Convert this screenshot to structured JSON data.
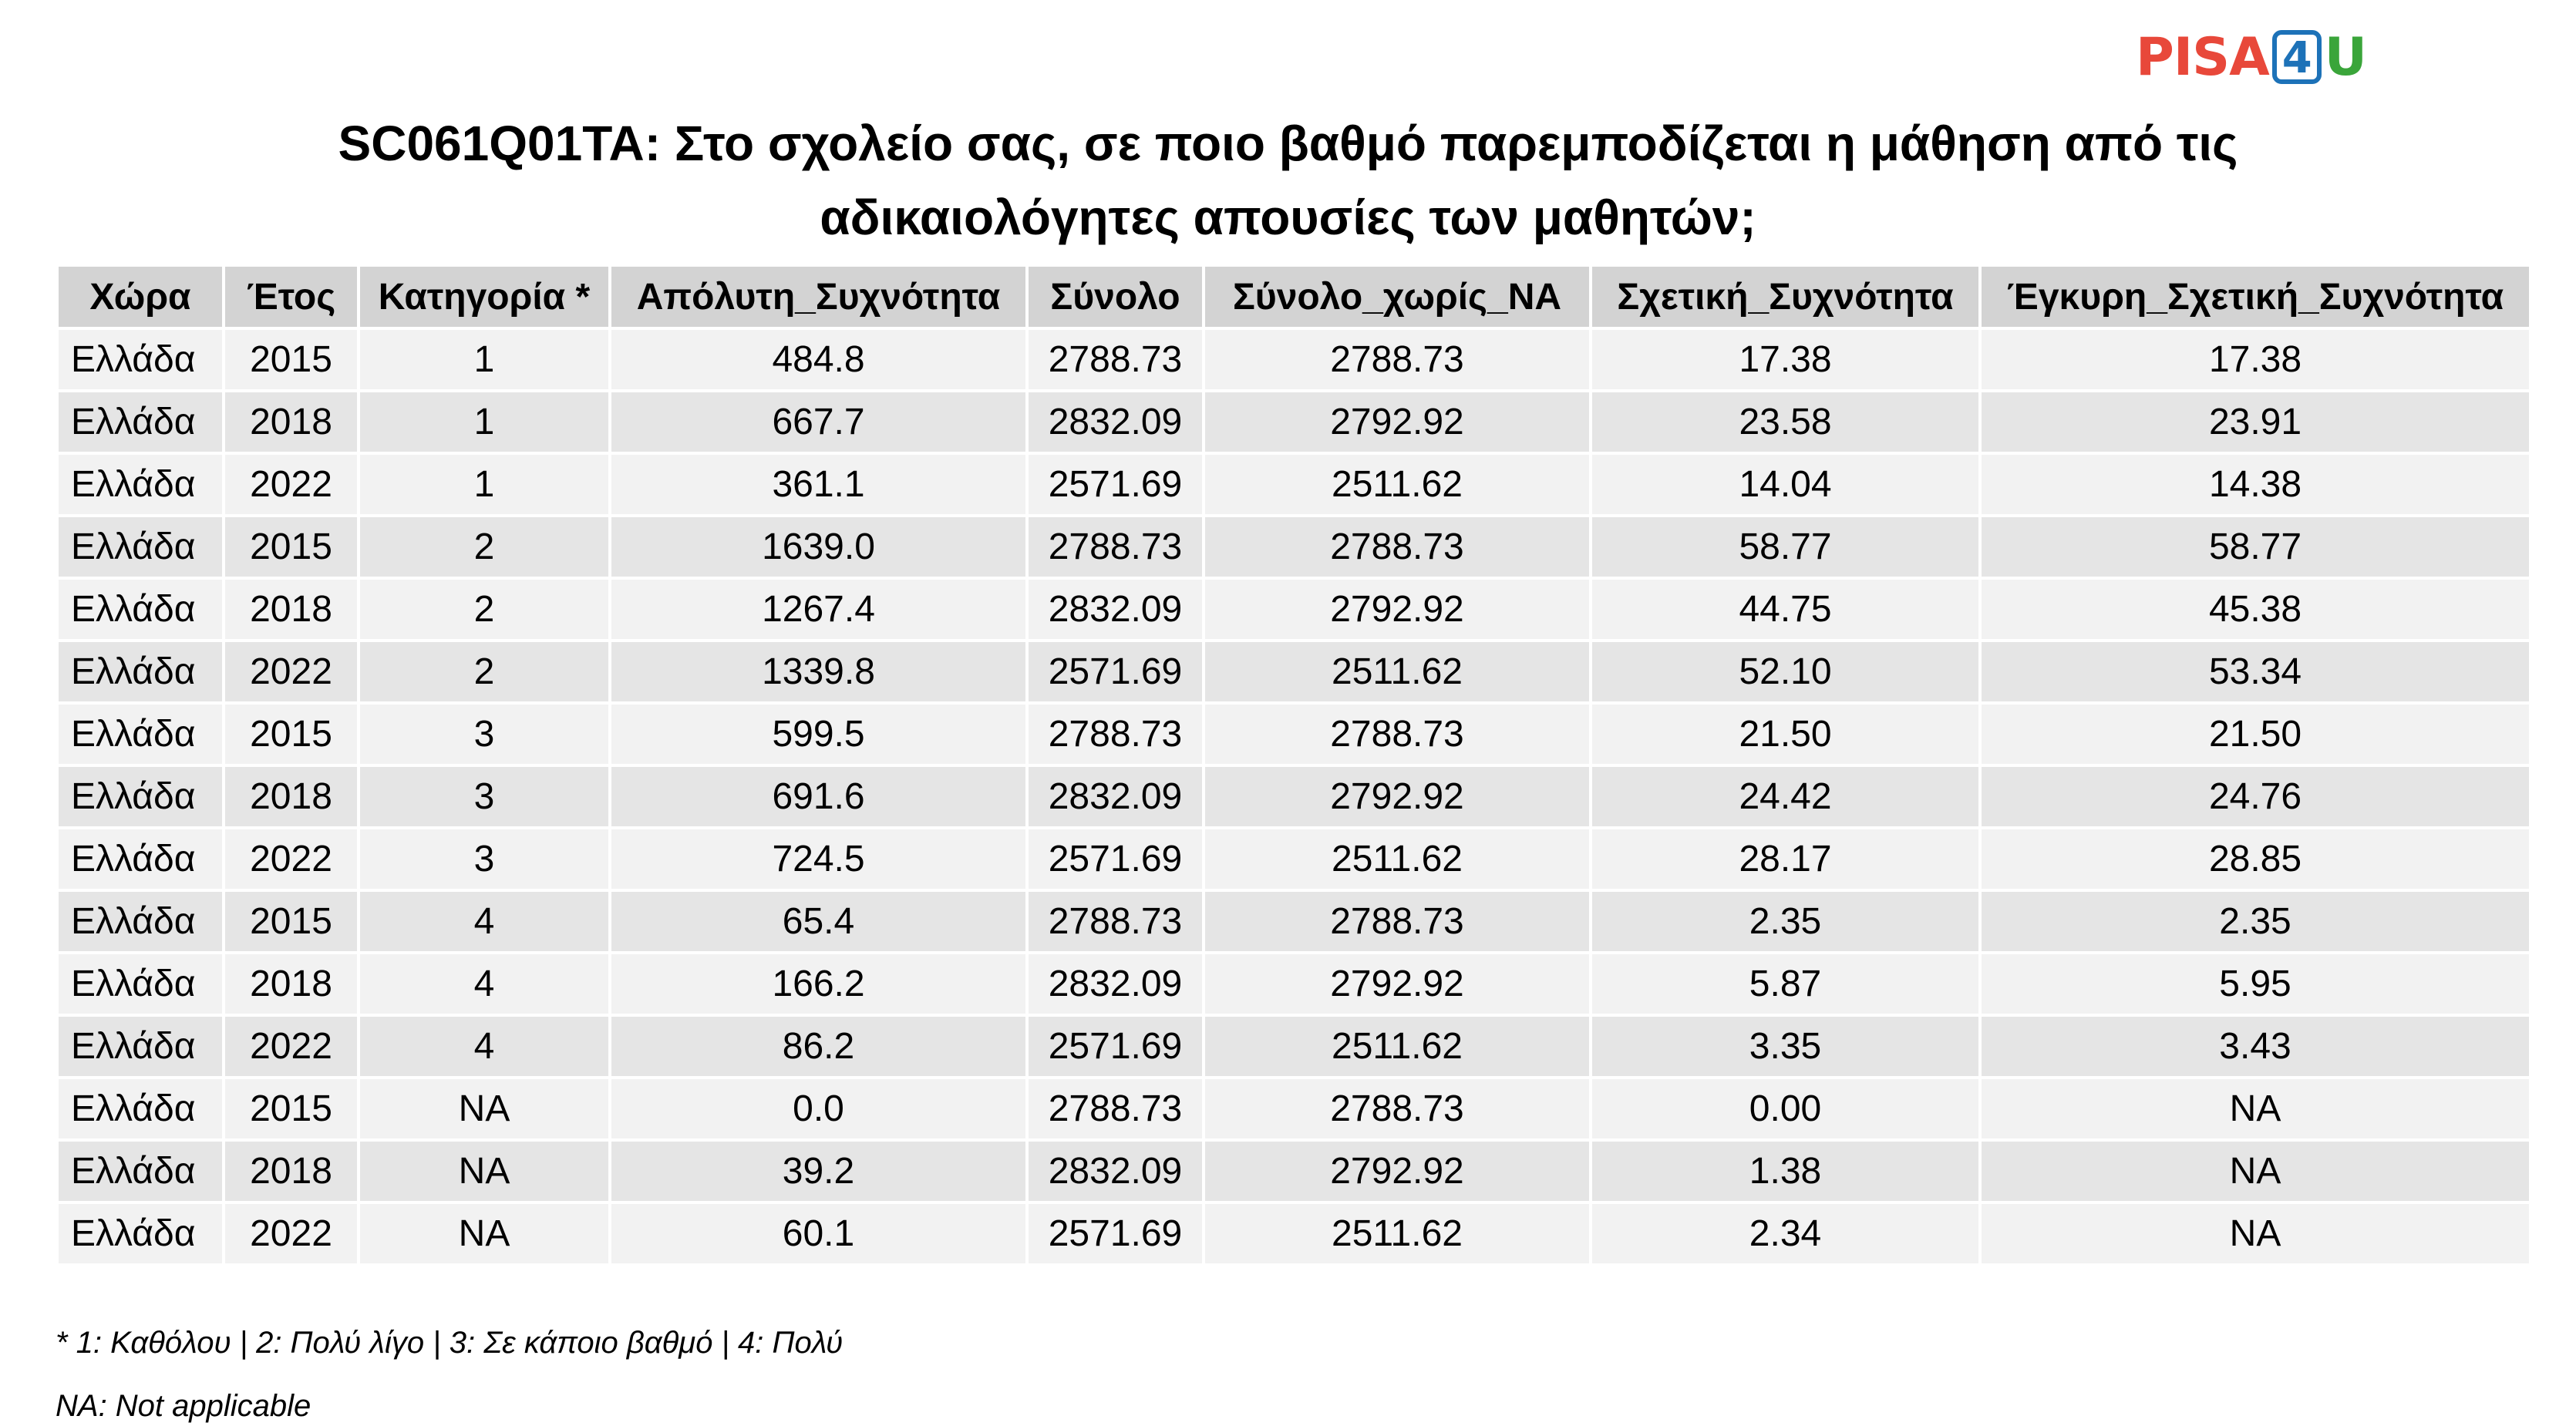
{
  "logo": {
    "part1": "PISA",
    "part2": "4",
    "part3": "U"
  },
  "title": {
    "line1": "SC061Q01TA: Στο σχολείο σας, σε ποιο βαθμό παρεμποδίζεται η μάθηση από τις",
    "line2": "αδικαιολόγητες απουσίες των μαθητών;"
  },
  "table": {
    "headers": [
      "Χώρα",
      "Έτος",
      "Κατηγορία *",
      "Απόλυτη_Συχνότητα",
      "Σύνολο",
      "Σύνολο_χωρίς_NA",
      "Σχετική_Συχνότητα",
      "Έγκυρη_Σχετική_Συχνότητα"
    ],
    "rows": [
      [
        "Ελλάδα",
        "2015",
        "1",
        "484.8",
        "2788.73",
        "2788.73",
        "17.38",
        "17.38"
      ],
      [
        "Ελλάδα",
        "2018",
        "1",
        "667.7",
        "2832.09",
        "2792.92",
        "23.58",
        "23.91"
      ],
      [
        "Ελλάδα",
        "2022",
        "1",
        "361.1",
        "2571.69",
        "2511.62",
        "14.04",
        "14.38"
      ],
      [
        "Ελλάδα",
        "2015",
        "2",
        "1639.0",
        "2788.73",
        "2788.73",
        "58.77",
        "58.77"
      ],
      [
        "Ελλάδα",
        "2018",
        "2",
        "1267.4",
        "2832.09",
        "2792.92",
        "44.75",
        "45.38"
      ],
      [
        "Ελλάδα",
        "2022",
        "2",
        "1339.8",
        "2571.69",
        "2511.62",
        "52.10",
        "53.34"
      ],
      [
        "Ελλάδα",
        "2015",
        "3",
        "599.5",
        "2788.73",
        "2788.73",
        "21.50",
        "21.50"
      ],
      [
        "Ελλάδα",
        "2018",
        "3",
        "691.6",
        "2832.09",
        "2792.92",
        "24.42",
        "24.76"
      ],
      [
        "Ελλάδα",
        "2022",
        "3",
        "724.5",
        "2571.69",
        "2511.62",
        "28.17",
        "28.85"
      ],
      [
        "Ελλάδα",
        "2015",
        "4",
        "65.4",
        "2788.73",
        "2788.73",
        "2.35",
        "2.35"
      ],
      [
        "Ελλάδα",
        "2018",
        "4",
        "166.2",
        "2832.09",
        "2792.92",
        "5.87",
        "5.95"
      ],
      [
        "Ελλάδα",
        "2022",
        "4",
        "86.2",
        "2571.69",
        "2511.62",
        "3.35",
        "3.43"
      ],
      [
        "Ελλάδα",
        "2015",
        "NA",
        "0.0",
        "2788.73",
        "2788.73",
        "0.00",
        "NA"
      ],
      [
        "Ελλάδα",
        "2018",
        "NA",
        "39.2",
        "2832.09",
        "2792.92",
        "1.38",
        "NA"
      ],
      [
        "Ελλάδα",
        "2022",
        "NA",
        "60.1",
        "2571.69",
        "2511.62",
        "2.34",
        "NA"
      ]
    ]
  },
  "notes": {
    "categories": "* 1: Καθόλου | 2: Πολύ λίγο | 3: Σε κάποιο βαθμό | 4: Πολύ",
    "na": "NA: Not applicable"
  }
}
